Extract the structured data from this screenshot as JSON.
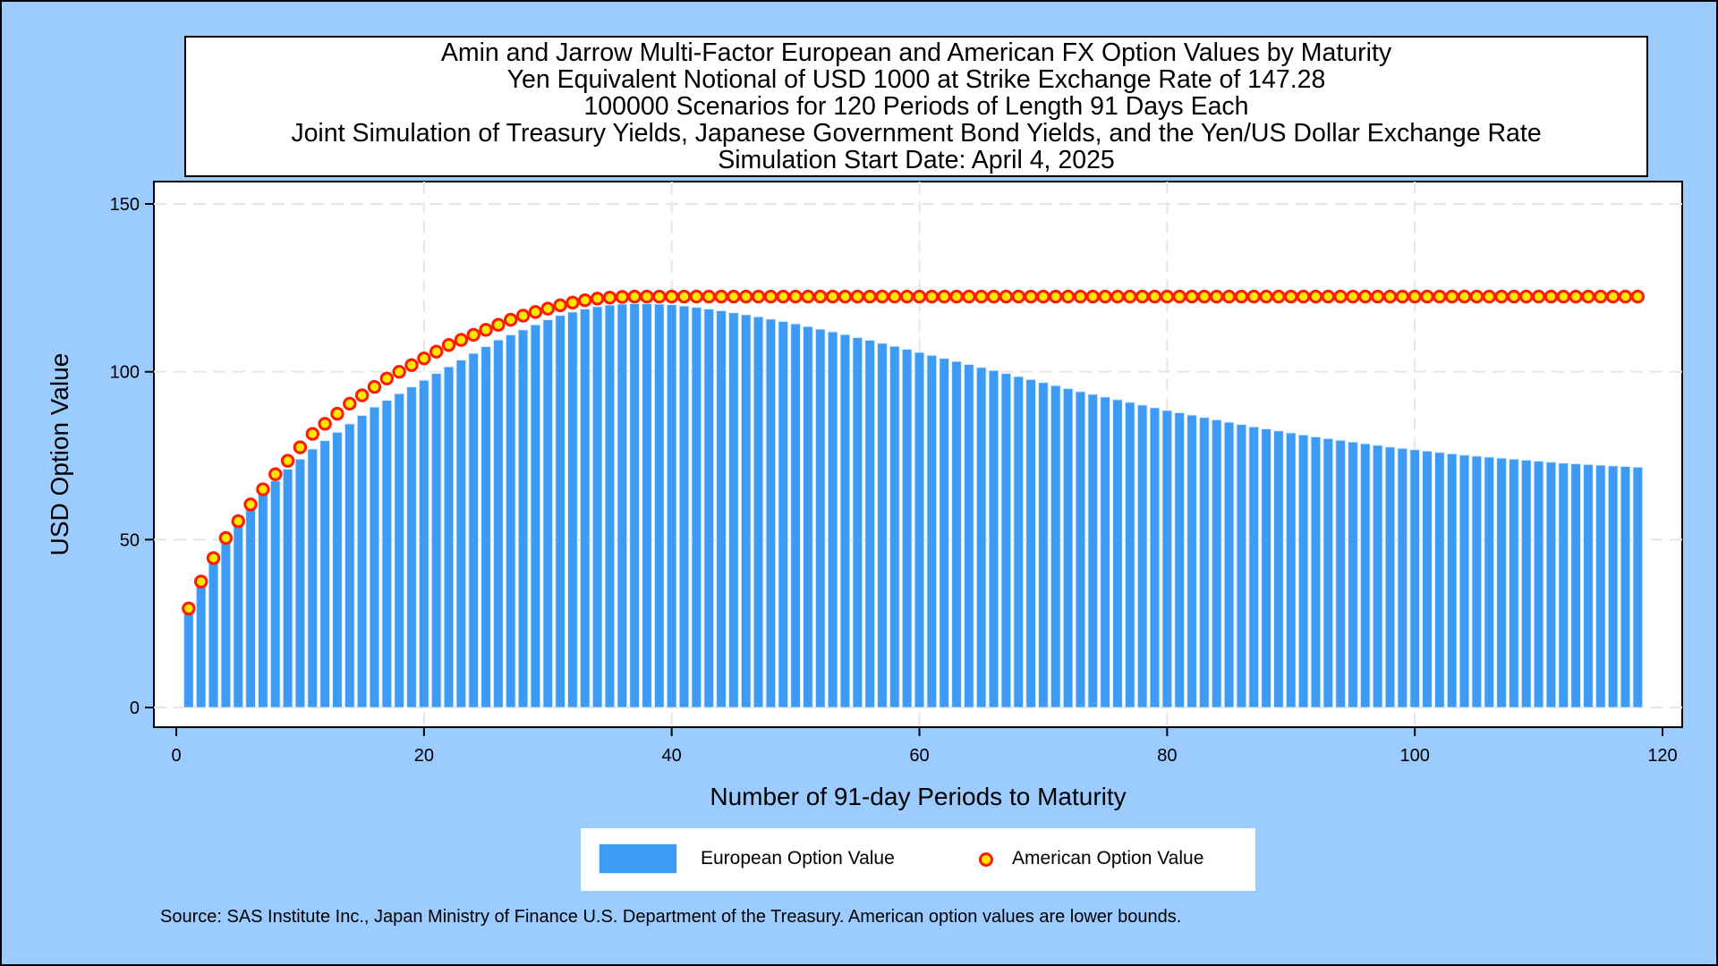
{
  "titles": [
    "Amin and Jarrow Multi-Factor European and American FX Option Values by Maturity",
    "Yen Equivalent Notional of USD 1000 at Strike Exchange Rate of 147.28",
    "100000 Scenarios for 120 Periods of Length 91 Days Each",
    "Joint Simulation of Treasury Yields, Japanese Government Bond Yields, and the Yen/US Dollar Exchange Rate",
    "Simulation Start Date: April 4, 2025"
  ],
  "footnote": "Source: SAS Institute Inc., Japan Ministry of Finance U.S. Department of the Treasury. American option values are lower bounds.",
  "colors": {
    "background": "#9ccbff",
    "bar": "#3d9bf5",
    "marker_fill": "#ffe600",
    "marker_edge": "#ff1a00"
  },
  "chart_data": {
    "type": "bar",
    "xlabel": "Number of 91-day Periods to Maturity",
    "ylabel": "USD Option Value",
    "xlim": [
      0,
      120
    ],
    "ylim": [
      0,
      150
    ],
    "xticks": [
      "0",
      "20",
      "40",
      "60",
      "80",
      "100",
      "120"
    ],
    "yticks": [
      "0",
      "50",
      "100",
      "150"
    ],
    "grid": true,
    "legend_position": "bottom",
    "x": [
      1,
      2,
      3,
      4,
      5,
      6,
      7,
      8,
      9,
      10,
      11,
      12,
      13,
      14,
      15,
      16,
      17,
      18,
      19,
      20,
      21,
      22,
      23,
      24,
      25,
      26,
      27,
      28,
      29,
      30,
      31,
      32,
      33,
      34,
      35,
      36,
      37,
      38,
      39,
      40,
      41,
      42,
      43,
      44,
      45,
      46,
      47,
      48,
      49,
      50,
      51,
      52,
      53,
      54,
      55,
      56,
      57,
      58,
      59,
      60,
      61,
      62,
      63,
      64,
      65,
      66,
      67,
      68,
      69,
      70,
      71,
      72,
      73,
      74,
      75,
      76,
      77,
      78,
      79,
      80,
      81,
      82,
      83,
      84,
      85,
      86,
      87,
      88,
      89,
      90,
      91,
      92,
      93,
      94,
      95,
      96,
      97,
      98,
      99,
      100,
      101,
      102,
      103,
      104,
      105,
      106,
      107,
      108,
      109,
      110,
      111,
      112,
      113,
      114,
      115,
      116,
      117,
      118
    ],
    "series": [
      {
        "name": "European Option Value",
        "kind": "bar",
        "values": [
          29.5,
          37.5,
          44.5,
          50.5,
          55.5,
          60,
          64,
          67.5,
          71,
          74,
          77,
          79.5,
          82,
          84.5,
          87,
          89.5,
          91.5,
          93.5,
          95.5,
          97.5,
          99.5,
          101.5,
          103.5,
          105.5,
          107.5,
          109.5,
          111,
          112.5,
          114,
          115.5,
          116.8,
          117.8,
          118.7,
          119.4,
          119.9,
          120.2,
          120.3,
          120.3,
          120.2,
          120,
          119.6,
          119.2,
          118.7,
          118.2,
          117.6,
          117,
          116.4,
          115.7,
          115,
          114.3,
          113.5,
          112.7,
          111.9,
          111.1,
          110.2,
          109.4,
          108.5,
          107.6,
          106.7,
          105.8,
          104.9,
          104,
          103.1,
          102.2,
          101.3,
          100.4,
          99.5,
          98.6,
          97.7,
          96.8,
          95.9,
          95,
          94.1,
          93.3,
          92.5,
          91.7,
          90.9,
          90.1,
          89.3,
          88.5,
          87.8,
          87.1,
          86.4,
          85.7,
          85,
          84.3,
          83.6,
          83,
          82.4,
          81.8,
          81.2,
          80.6,
          80.1,
          79.6,
          79.1,
          78.6,
          78.1,
          77.6,
          77.2,
          76.8,
          76.4,
          76,
          75.6,
          75.2,
          74.9,
          74.6,
          74.3,
          74,
          73.7,
          73.4,
          73.1,
          72.8,
          72.6,
          72.4,
          72.2,
          72,
          71.8,
          71.6
        ]
      },
      {
        "name": "American Option Value",
        "kind": "marker",
        "values": [
          29.5,
          37.5,
          44.5,
          50.5,
          55.5,
          60.5,
          65,
          69.5,
          73.5,
          77.5,
          81.5,
          84.5,
          87.5,
          90.5,
          93,
          95.5,
          98,
          100,
          102,
          104,
          106,
          108,
          109.5,
          111,
          112.5,
          114,
          115.5,
          116.7,
          117.8,
          118.8,
          119.8,
          120.6,
          121.3,
          121.8,
          122.1,
          122.3,
          122.4,
          122.4,
          122.4,
          122.4,
          122.4,
          122.4,
          122.4,
          122.4,
          122.4,
          122.4,
          122.4,
          122.4,
          122.4,
          122.4,
          122.4,
          122.4,
          122.4,
          122.4,
          122.4,
          122.4,
          122.4,
          122.4,
          122.4,
          122.4,
          122.4,
          122.4,
          122.4,
          122.4,
          122.4,
          122.4,
          122.4,
          122.4,
          122.4,
          122.4,
          122.4,
          122.4,
          122.4,
          122.4,
          122.4,
          122.4,
          122.4,
          122.4,
          122.4,
          122.4,
          122.4,
          122.4,
          122.4,
          122.4,
          122.4,
          122.4,
          122.4,
          122.4,
          122.4,
          122.4,
          122.4,
          122.4,
          122.4,
          122.4,
          122.4,
          122.4,
          122.4,
          122.4,
          122.4,
          122.4,
          122.4,
          122.4,
          122.4,
          122.4,
          122.4,
          122.4,
          122.4,
          122.4,
          122.4,
          122.4,
          122.4,
          122.4,
          122.4,
          122.4,
          122.4,
          122.4,
          122.4,
          122.4
        ]
      }
    ]
  }
}
